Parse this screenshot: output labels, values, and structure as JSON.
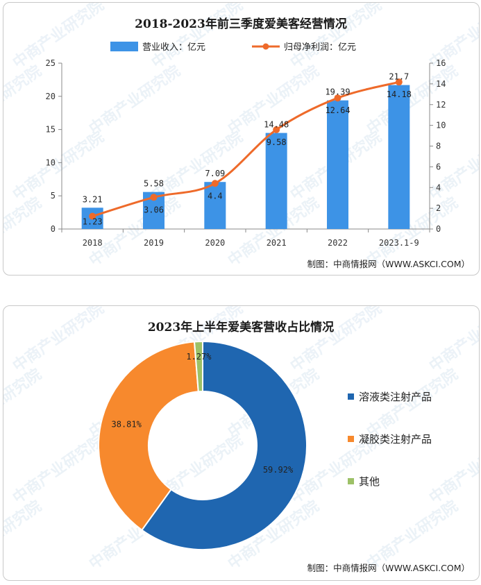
{
  "colors": {
    "bar": "#3d93e6",
    "line": "#ee6a2a",
    "donut": [
      "#1f66b0",
      "#f7892d",
      "#9dc167"
    ]
  },
  "watermark": "中商产业研究院",
  "top": {
    "title": "2018-2023年前三季度爱美客经营情况",
    "credit": "制图：中商情报网（WWW.ASKCI.COM）",
    "legend": {
      "bar": "营业收入：亿元",
      "line": "归母净利润：亿元"
    }
  },
  "bottom": {
    "title": "2023年上半年爱美客营收占比情况",
    "credit": "制图：中商情报网（WWW.ASKCI.COM）"
  },
  "chart_data": [
    {
      "type": "bar",
      "title": "2018-2023年前三季度爱美客经营情况",
      "categories": [
        "2018",
        "2019",
        "2020",
        "2021",
        "2022",
        "2023.1-9"
      ],
      "series": [
        {
          "name": "营业收入：亿元",
          "type": "bar",
          "axis": "left",
          "values": [
            3.21,
            5.58,
            7.09,
            14.48,
            19.39,
            21.7
          ],
          "labels": [
            "3.21",
            "5.58",
            "7.09",
            "14.48",
            "19.39",
            "21.7"
          ]
        },
        {
          "name": "归母净利润：亿元",
          "type": "line",
          "axis": "right",
          "smooth": true,
          "values": [
            1.23,
            3.06,
            4.4,
            9.58,
            12.64,
            14.18
          ],
          "labels": [
            "1.23",
            "3.06",
            "4.4",
            "9.58",
            "12.64",
            "14.18"
          ]
        }
      ],
      "y_left": {
        "min": 0,
        "max": 25,
        "ticks": [
          "0",
          "5",
          "10",
          "15",
          "20",
          "25"
        ]
      },
      "y_right": {
        "min": 0,
        "max": 16,
        "ticks": [
          "0",
          "2",
          "4",
          "6",
          "8",
          "10",
          "12",
          "14",
          "16"
        ]
      },
      "legend_position": "top",
      "grid": false
    },
    {
      "type": "pie",
      "title": "2023年上半年爱美客营收占比情况",
      "donut": true,
      "slices": [
        {
          "name": "溶液类注射产品",
          "value": 59.92,
          "label": "59.92%"
        },
        {
          "name": "凝胶类注射产品",
          "value": 38.81,
          "label": "38.81%"
        },
        {
          "name": "其他",
          "value": 1.27,
          "label": "1.27%"
        }
      ],
      "legend_position": "right"
    }
  ]
}
